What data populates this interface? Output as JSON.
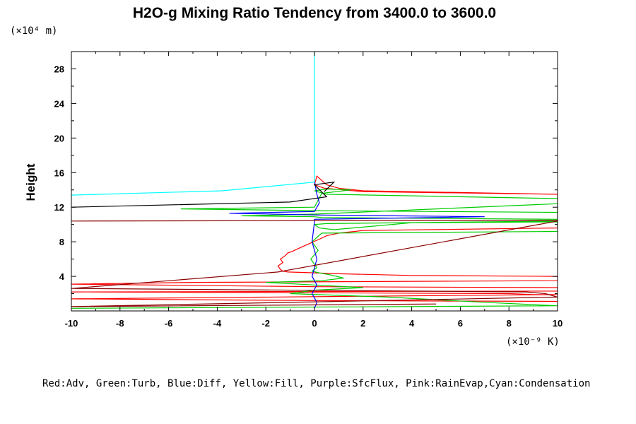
{
  "chart_data": {
    "type": "line",
    "title": "H2O-g Mixing Ratio Tendency from 3400.0 to 3600.0",
    "ylabel": "Height",
    "y_unit_label": "(×10⁴ m)",
    "x_unit_label": "(×10⁻⁹ K)",
    "xlim": [
      -10,
      10
    ],
    "ylim": [
      0,
      30
    ],
    "x_ticks": [
      -10,
      -8,
      -6,
      -4,
      -2,
      0,
      2,
      4,
      6,
      8,
      10
    ],
    "x_tick_labels": [
      "-10",
      "-8",
      "-6",
      "-4",
      "-2",
      "0",
      "2",
      "4",
      "6",
      "8",
      "10"
    ],
    "y_ticks": [
      4,
      8,
      12,
      16,
      20,
      24,
      28
    ],
    "y_tick_labels": [
      "4",
      "8",
      "12",
      "16",
      "20",
      "24",
      "28"
    ],
    "legend_text": "Red:Adv, Green:Turb, Blue:Diff, Yellow:Fill, Purple:SfcFlux, Pink:RainEvap,Cyan:Condensation",
    "legend_placement": "bottom",
    "series": [
      {
        "name": "Adv",
        "color": "#ff0000",
        "x": [
          10,
          2,
          1,
          0.5,
          0.3,
          0.1,
          0,
          0.4,
          2,
          10,
          10,
          2,
          1,
          0.5,
          0.2,
          -0.2,
          -0.6,
          -0.9,
          -1.1,
          -1.2,
          -1.4,
          -1.3,
          -1.5,
          -1.4,
          -1.3,
          -1.1,
          -0.4,
          1,
          4,
          10,
          10,
          -5,
          -10,
          0,
          10,
          10,
          -10,
          0,
          8,
          9,
          10,
          -10,
          0,
          10
        ],
        "y": [
          13.5,
          13.9,
          14.2,
          14.6,
          15.1,
          15.6,
          14.6,
          14.2,
          13.8,
          13.5,
          9.6,
          9.3,
          9.0,
          8.7,
          8.3,
          7.8,
          7.3,
          6.9,
          6.7,
          6.4,
          6.0,
          5.6,
          5.2,
          4.8,
          4.6,
          4.5,
          4.45,
          4.3,
          4.1,
          4.0,
          3.5,
          3.3,
          3.1,
          2.8,
          2.7,
          2.3,
          2.2,
          2.1,
          2.0,
          1.9,
          1.9,
          1.4,
          1.2,
          1.1
        ]
      },
      {
        "name": "Turb",
        "color": "#00cc00",
        "x": [
          10,
          0.5,
          0,
          0.5,
          1.5,
          0.3,
          0,
          -5.5,
          0,
          10,
          10,
          0,
          -3,
          0,
          0.3,
          10,
          10,
          0.5,
          0,
          0.2,
          0.8,
          4,
          10,
          10,
          0.3,
          -0.1,
          0.15,
          -0.15,
          0.1,
          -0.1,
          0.2,
          0.6,
          1.2,
          0.3,
          -2,
          0,
          2,
          0,
          -1,
          3,
          7,
          10,
          -10
        ],
        "y": [
          13.0,
          13.5,
          13.9,
          14.1,
          14.0,
          13.6,
          12.0,
          11.8,
          11.6,
          11.4,
          12.4,
          11.2,
          11.0,
          10.9,
          10.8,
          10.6,
          10.4,
          10.1,
          10.0,
          9.6,
          9.4,
          10.2,
          10.3,
          9.2,
          9.0,
          8.0,
          7.0,
          6.0,
          5.0,
          4.6,
          4.4,
          4.2,
          3.8,
          3.5,
          3.3,
          3.0,
          2.7,
          2.4,
          2.0,
          1.6,
          1.0,
          0.6,
          0.3
        ]
      },
      {
        "name": "Diff",
        "color": "#0000ff",
        "x": [
          0,
          0.1,
          0.2,
          0,
          -3.5,
          0,
          7,
          0,
          0,
          -0.1,
          0.1,
          -0.1,
          0.1,
          -0.1,
          0.1,
          0
        ],
        "y": [
          15.0,
          13.5,
          12.5,
          11.5,
          11.3,
          11.1,
          10.9,
          10.6,
          10.3,
          8.0,
          6.0,
          4.0,
          3.0,
          2.0,
          1.0,
          0.3
        ]
      },
      {
        "name": "Condensation",
        "color": "#00ffff",
        "x": [
          0,
          0,
          -3.8,
          -10
        ],
        "y": [
          30,
          14.9,
          13.9,
          13.4
        ]
      },
      {
        "name": "",
        "color": "#000000",
        "x": [
          -10,
          -1,
          0.5,
          0,
          0.8,
          0.4
        ],
        "y": [
          12.0,
          12.6,
          13.2,
          14.6,
          14.9,
          13.8
        ]
      },
      {
        "name": "",
        "color": "#8b0000",
        "x": [
          -10,
          10,
          10,
          -1.5,
          -10,
          8.7,
          9.5,
          10,
          -10,
          5
        ],
        "y": [
          10.4,
          10.5,
          10.4,
          4.5,
          2.6,
          2.2,
          2.0,
          1.6,
          0.5,
          0.8
        ]
      }
    ]
  }
}
